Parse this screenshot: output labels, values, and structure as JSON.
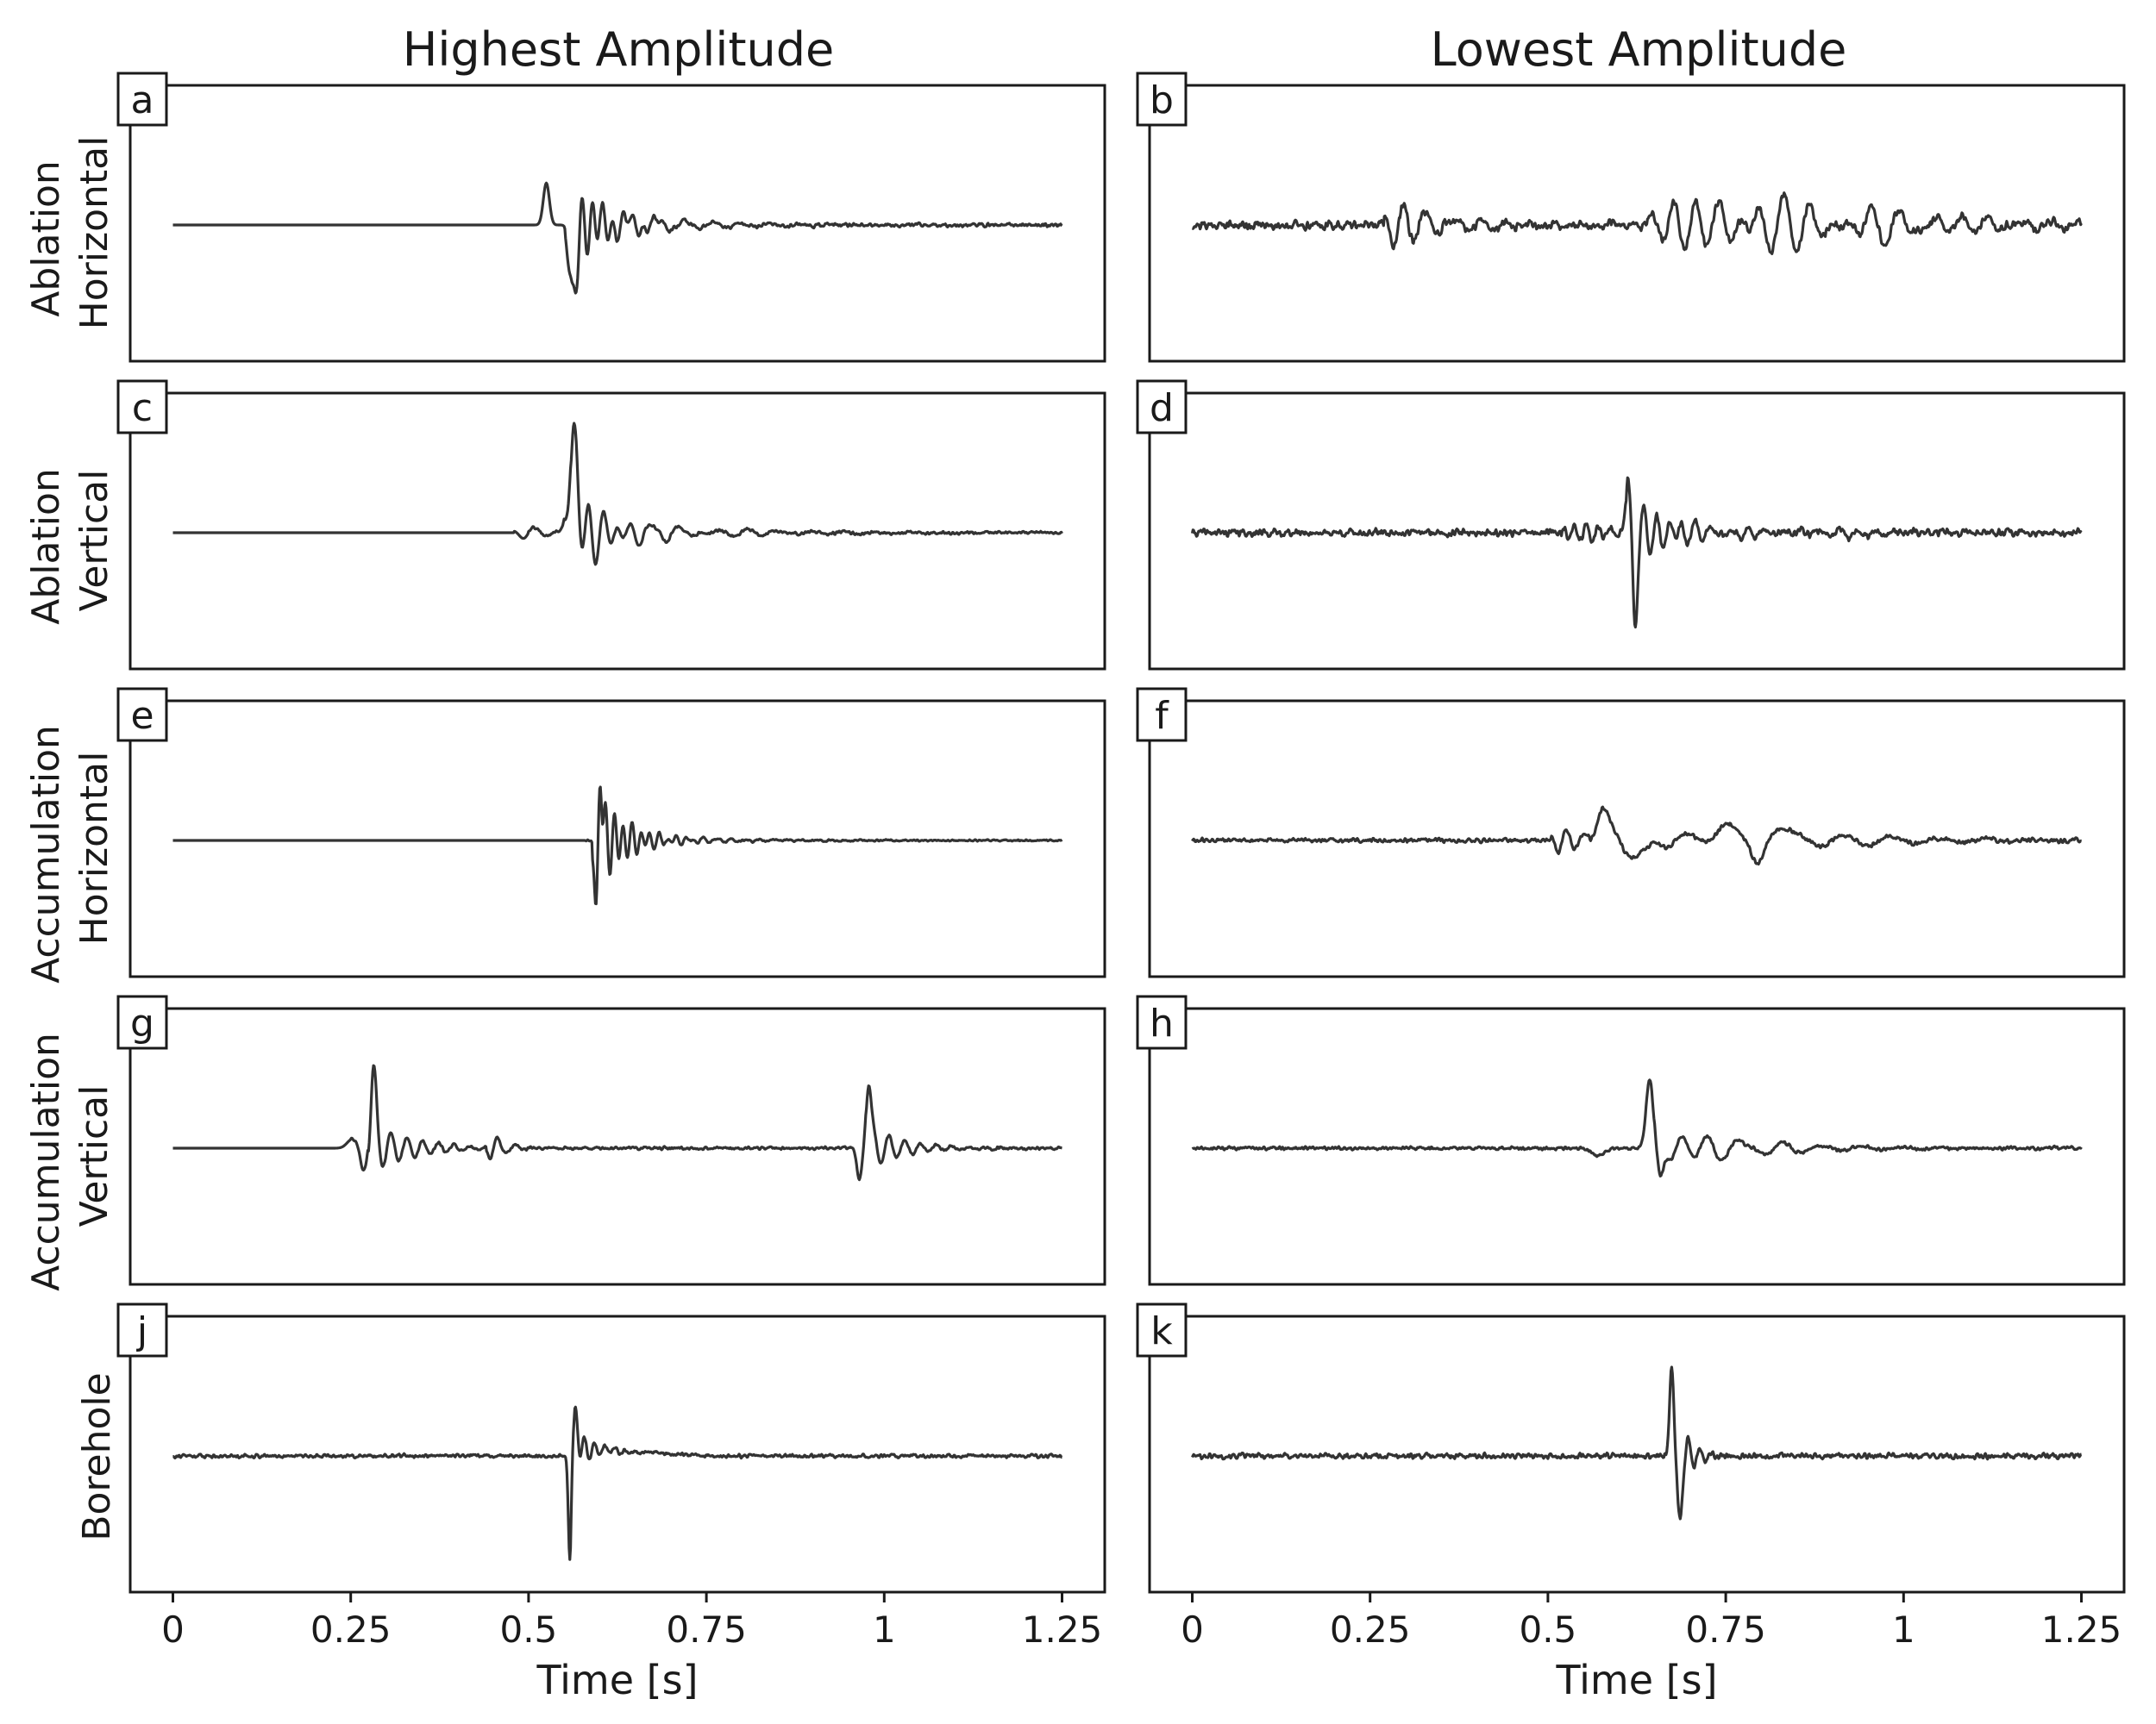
{
  "figure": {
    "column_titles": [
      "Highest Amplitude",
      "Lowest Amplitude"
    ],
    "row_labels": [
      [
        "Ablation",
        "Horizontal"
      ],
      [
        "Ablation",
        "Vertical"
      ],
      [
        "Accumulation",
        "Horizontal"
      ],
      [
        "Accumulation",
        "Vertical"
      ],
      [
        "Borehole"
      ]
    ],
    "x_tick_labels": [
      "0",
      "0.25",
      "0.5",
      "0.75",
      "1",
      "1.25"
    ],
    "x_axis_label": "Time [s]",
    "trace_color": "#333333"
  },
  "chart_data": [
    {
      "type": "line",
      "panel": "a",
      "column": "Highest Amplitude",
      "row": "Ablation Horizontal",
      "xlabel": "",
      "xlim": [
        -0.06,
        1.31
      ],
      "ylim": [
        -1.0,
        1.0
      ],
      "events": [
        {
          "t": 0.525,
          "amp": 0.38,
          "w": 0.006,
          "f": 0
        },
        {
          "t": 0.562,
          "amp": -0.75,
          "w": 0.006,
          "f": 0
        },
        {
          "t": 0.572,
          "amp": 0.3,
          "w": 0.02,
          "f": 70,
          "decay": 0.045
        },
        {
          "t": 0.63,
          "amp": 0.08,
          "w": 0.06,
          "f": 25,
          "decay": 0.12
        }
      ],
      "noise": 0.01,
      "noise_start": 0.55,
      "noise_end": 1.25,
      "seed": 11
    },
    {
      "type": "line",
      "panel": "b",
      "column": "Lowest Amplitude",
      "row": "Ablation Horizontal",
      "xlabel": "",
      "xlim": [
        -0.06,
        1.31
      ],
      "ylim": [
        -1.0,
        1.0
      ],
      "events": [
        {
          "t": 0.29,
          "amp": 0.22,
          "w": 0.02,
          "f": 35,
          "decay": 0.05
        },
        {
          "t": 0.36,
          "amp": 0.08,
          "w": 0.04,
          "f": 28,
          "decay": 0.08
        },
        {
          "t": 0.7,
          "amp": 0.22,
          "w": 0.06,
          "f": 32,
          "decay": 0.2
        },
        {
          "t": 0.82,
          "amp": 0.18,
          "w": 0.08,
          "f": 24,
          "decay": 0.2
        },
        {
          "t": 0.93,
          "amp": 0.08,
          "w": 0.04,
          "f": 18,
          "decay": 0.1
        }
      ],
      "noise": 0.025,
      "noise_start": 0.0,
      "noise_end": 1.25,
      "seed": 21
    },
    {
      "type": "line",
      "panel": "c",
      "column": "Highest Amplitude",
      "row": "Ablation Vertical",
      "xlabel": "",
      "xlim": [
        -0.06,
        1.31
      ],
      "ylim": [
        -1.0,
        1.0
      ],
      "events": [
        {
          "t": 0.5,
          "amp": 0.06,
          "w": 0.02,
          "f": 30,
          "decay": 0.03
        },
        {
          "t": 0.562,
          "amp": 0.75,
          "w": 0.009,
          "f": 0
        },
        {
          "t": 0.57,
          "amp": -0.35,
          "w": 0.02,
          "f": 50,
          "decay": 0.04
        },
        {
          "t": 0.6,
          "amp": 0.1,
          "w": 0.04,
          "f": 30,
          "decay": 0.1
        },
        {
          "t": 0.66,
          "amp": 0.04,
          "w": 0.1,
          "f": 22,
          "decay": 0.2
        }
      ],
      "noise": 0.008,
      "noise_start": 0.5,
      "noise_end": 1.25,
      "seed": 31
    },
    {
      "type": "line",
      "panel": "d",
      "column": "Lowest Amplitude",
      "row": "Ablation Vertical",
      "xlabel": "",
      "xlim": [
        -0.06,
        1.31
      ],
      "ylim": [
        -1.0,
        1.0
      ],
      "events": [
        {
          "t": 0.55,
          "amp": 0.08,
          "w": 0.03,
          "f": 60,
          "decay": 0.06
        },
        {
          "t": 0.612,
          "amp": 0.48,
          "w": 0.004,
          "f": 0
        },
        {
          "t": 0.622,
          "amp": -0.8,
          "w": 0.004,
          "f": 0
        },
        {
          "t": 0.63,
          "amp": 0.25,
          "w": 0.02,
          "f": 55,
          "decay": 0.05
        },
        {
          "t": 0.7,
          "amp": 0.07,
          "w": 0.04,
          "f": 40,
          "decay": 0.1
        },
        {
          "t": 0.93,
          "amp": 0.05,
          "w": 0.03,
          "f": 40,
          "decay": 0.05
        }
      ],
      "noise": 0.02,
      "noise_start": 0.0,
      "noise_end": 1.25,
      "seed": 41
    },
    {
      "type": "line",
      "panel": "e",
      "column": "Highest Amplitude",
      "row": "Accumulation Horizontal",
      "xlabel": "",
      "xlim": [
        -0.06,
        1.31
      ],
      "ylim": [
        -1.0,
        1.0
      ],
      "events": [
        {
          "t": 0.595,
          "amp": -0.78,
          "w": 0.003,
          "f": 0
        },
        {
          "t": 0.601,
          "amp": 0.78,
          "w": 0.003,
          "f": 0
        },
        {
          "t": 0.605,
          "amp": 0.35,
          "w": 0.015,
          "f": 80,
          "decay": 0.04
        },
        {
          "t": 0.64,
          "amp": 0.05,
          "w": 0.05,
          "f": 50,
          "decay": 0.1
        }
      ],
      "noise": 0.005,
      "noise_start": 0.58,
      "noise_end": 1.25,
      "seed": 51
    },
    {
      "type": "line",
      "panel": "f",
      "column": "Lowest Amplitude",
      "row": "Accumulation Horizontal",
      "xlabel": "",
      "xlim": [
        -0.06,
        1.31
      ],
      "ylim": [
        -1.0,
        1.0
      ],
      "events": [
        {
          "t": 0.52,
          "amp": 0.12,
          "w": 0.015,
          "f": 40,
          "decay": 0.04
        },
        {
          "t": 0.58,
          "amp": 0.28,
          "w": 0.015,
          "f": 0
        },
        {
          "t": 0.62,
          "amp": -0.15,
          "w": 0.02,
          "f": 0
        },
        {
          "t": 0.68,
          "amp": 0.08,
          "w": 0.03,
          "f": 15,
          "decay": 0.06
        },
        {
          "t": 0.75,
          "amp": 0.14,
          "w": 0.02,
          "f": 0
        },
        {
          "t": 0.795,
          "amp": -0.2,
          "w": 0.012,
          "f": 0
        },
        {
          "t": 0.83,
          "amp": 0.1,
          "w": 0.02,
          "f": 0
        },
        {
          "t": 0.9,
          "amp": 0.06,
          "w": 0.06,
          "f": 15,
          "decay": 0.15
        }
      ],
      "noise": 0.012,
      "noise_start": 0.0,
      "noise_end": 1.25,
      "seed": 61
    },
    {
      "type": "line",
      "panel": "g",
      "column": "Highest Amplitude",
      "row": "Accumulation Vertical",
      "xlabel": "",
      "xlim": [
        -0.06,
        1.31
      ],
      "ylim": [
        -1.0,
        1.0
      ],
      "events": [
        {
          "t": 0.252,
          "amp": 0.08,
          "w": 0.01,
          "f": 0
        },
        {
          "t": 0.268,
          "amp": -0.2,
          "w": 0.006,
          "f": 0
        },
        {
          "t": 0.282,
          "amp": 0.65,
          "w": 0.005,
          "f": 0
        },
        {
          "t": 0.29,
          "amp": -0.18,
          "w": 0.015,
          "f": 45,
          "decay": 0.06
        },
        {
          "t": 0.45,
          "amp": 0.12,
          "w": 0.01,
          "f": 40,
          "decay": 0.02
        },
        {
          "t": 0.965,
          "amp": -0.28,
          "w": 0.005,
          "f": 0
        },
        {
          "t": 0.978,
          "amp": 0.58,
          "w": 0.005,
          "f": 0
        },
        {
          "t": 0.99,
          "amp": -0.15,
          "w": 0.015,
          "f": 45,
          "decay": 0.05
        }
      ],
      "noise": 0.008,
      "noise_start": 0.25,
      "noise_end": 1.25,
      "seed": 71
    },
    {
      "type": "line",
      "panel": "h",
      "column": "Lowest Amplitude",
      "row": "Accumulation Vertical",
      "xlabel": "",
      "xlim": [
        -0.06,
        1.31
      ],
      "ylim": [
        -1.0,
        1.0
      ],
      "events": [
        {
          "t": 0.57,
          "amp": -0.07,
          "w": 0.012,
          "f": 0
        },
        {
          "t": 0.643,
          "amp": 0.62,
          "w": 0.007,
          "f": 0
        },
        {
          "t": 0.658,
          "amp": -0.3,
          "w": 0.006,
          "f": 0
        },
        {
          "t": 0.68,
          "amp": 0.12,
          "w": 0.03,
          "f": 28,
          "decay": 0.07
        },
        {
          "t": 0.76,
          "amp": 0.08,
          "w": 0.05,
          "f": 18,
          "decay": 0.12
        }
      ],
      "noise": 0.009,
      "noise_start": 0.0,
      "noise_end": 1.25,
      "seed": 81
    },
    {
      "type": "line",
      "panel": "j",
      "column": "Highest Amplitude",
      "row": "Borehole",
      "xlabel": "Time [s]",
      "xlim": [
        -0.06,
        1.31
      ],
      "ylim": [
        -1.0,
        1.0
      ],
      "events": [
        {
          "t": 0.558,
          "amp": -0.95,
          "w": 0.003,
          "f": 0
        },
        {
          "t": 0.566,
          "amp": 0.35,
          "w": 0.004,
          "f": 0
        },
        {
          "t": 0.575,
          "amp": 0.12,
          "w": 0.01,
          "f": 70,
          "decay": 0.03
        }
      ],
      "ramp": {
        "t0": 0.56,
        "t1": 0.75,
        "amp": 0.07
      },
      "noise": 0.01,
      "noise_start": 0.0,
      "noise_end": 1.25,
      "seed": 91
    },
    {
      "type": "line",
      "panel": "k",
      "column": "Lowest Amplitude",
      "row": "Borehole",
      "xlabel": "Time [s]",
      "xlim": [
        -0.06,
        1.31
      ],
      "ylim": [
        -1.0,
        1.0
      ],
      "events": [
        {
          "t": 0.674,
          "amp": 0.8,
          "w": 0.004,
          "f": 0
        },
        {
          "t": 0.685,
          "amp": -0.55,
          "w": 0.004,
          "f": 0
        },
        {
          "t": 0.693,
          "amp": 0.2,
          "w": 0.008,
          "f": 60,
          "decay": 0.02
        }
      ],
      "noise": 0.015,
      "noise_start": 0.0,
      "noise_end": 1.25,
      "seed": 101
    }
  ]
}
